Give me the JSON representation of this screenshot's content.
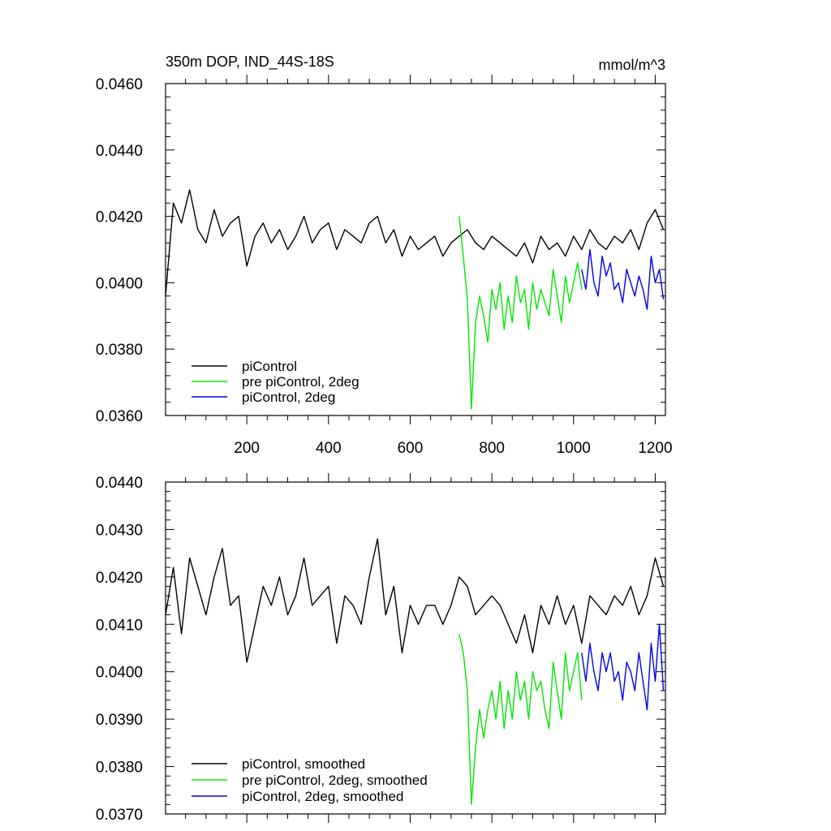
{
  "chart_data": [
    {
      "type": "line",
      "title": "350m DOP, IND_44S-18S",
      "units": "mmol/m^3",
      "xlim": [
        1,
        1225
      ],
      "ylim": [
        0.036,
        0.046
      ],
      "yticks": [
        "0.0360",
        "0.0380",
        "0.0400",
        "0.0420",
        "0.0440",
        "0.0460"
      ],
      "xticks": [
        "200",
        "400",
        "600",
        "800",
        "1000",
        "1200"
      ],
      "legend_position": "bottom-left",
      "series": [
        {
          "name": "piControl",
          "color": "#000000",
          "x": [
            1,
            20,
            40,
            60,
            80,
            100,
            120,
            140,
            160,
            180,
            200,
            220,
            240,
            260,
            280,
            300,
            320,
            340,
            360,
            380,
            400,
            420,
            440,
            460,
            480,
            500,
            520,
            540,
            560,
            580,
            600,
            620,
            640,
            660,
            680,
            700,
            720,
            740,
            760,
            780,
            800,
            820,
            840,
            860,
            880,
            900,
            920,
            940,
            960,
            980,
            1000,
            1020,
            1040,
            1060,
            1080,
            1100,
            1120,
            1140,
            1160,
            1180,
            1200,
            1220
          ],
          "y": [
            0.0396,
            0.0424,
            0.0418,
            0.0428,
            0.0416,
            0.0412,
            0.0422,
            0.0414,
            0.0418,
            0.042,
            0.0405,
            0.0414,
            0.0418,
            0.0412,
            0.0416,
            0.041,
            0.0414,
            0.042,
            0.0412,
            0.0416,
            0.0418,
            0.041,
            0.0416,
            0.0414,
            0.0412,
            0.0418,
            0.042,
            0.0412,
            0.0416,
            0.0408,
            0.0414,
            0.041,
            0.0412,
            0.0414,
            0.0408,
            0.0412,
            0.0414,
            0.0416,
            0.0412,
            0.041,
            0.0414,
            0.0412,
            0.041,
            0.0408,
            0.0412,
            0.0406,
            0.0414,
            0.041,
            0.0412,
            0.0408,
            0.0414,
            0.041,
            0.0416,
            0.0412,
            0.041,
            0.0414,
            0.0412,
            0.0416,
            0.041,
            0.0418,
            0.0422,
            0.0416
          ]
        },
        {
          "name": "pre piControl, 2deg",
          "color": "#00e600",
          "x": [
            720,
            730,
            740,
            750,
            760,
            770,
            780,
            790,
            800,
            810,
            820,
            830,
            840,
            850,
            860,
            870,
            880,
            890,
            900,
            910,
            920,
            930,
            940,
            950,
            960,
            970,
            980,
            990,
            1000,
            1010,
            1020
          ],
          "y": [
            0.042,
            0.0408,
            0.0395,
            0.0362,
            0.0388,
            0.0396,
            0.039,
            0.0382,
            0.0398,
            0.0392,
            0.04,
            0.0386,
            0.0396,
            0.0388,
            0.0402,
            0.0394,
            0.0398,
            0.0386,
            0.04,
            0.0392,
            0.0398,
            0.0394,
            0.039,
            0.0404,
            0.0396,
            0.0388,
            0.0402,
            0.0394,
            0.04,
            0.0406,
            0.0398
          ]
        },
        {
          "name": "piControl, 2deg",
          "color": "#0000e6",
          "x": [
            1020,
            1030,
            1040,
            1050,
            1060,
            1070,
            1080,
            1090,
            1100,
            1110,
            1120,
            1130,
            1140,
            1150,
            1160,
            1170,
            1180,
            1190,
            1200,
            1210,
            1220
          ],
          "y": [
            0.0404,
            0.0398,
            0.041,
            0.04,
            0.0396,
            0.0408,
            0.0402,
            0.0406,
            0.0398,
            0.04,
            0.0394,
            0.0404,
            0.04,
            0.0396,
            0.0402,
            0.0398,
            0.0392,
            0.0408,
            0.04,
            0.0404,
            0.0395
          ]
        }
      ]
    },
    {
      "type": "line",
      "xlim": [
        1,
        1225
      ],
      "ylim": [
        0.037,
        0.044
      ],
      "yticks": [
        "0.0370",
        "0.0380",
        "0.0390",
        "0.0400",
        "0.0410",
        "0.0420",
        "0.0430",
        "0.0440"
      ],
      "legend_position": "bottom-left",
      "series": [
        {
          "name": "piControl, smoothed",
          "color": "#000000",
          "x": [
            1,
            20,
            40,
            60,
            80,
            100,
            120,
            140,
            160,
            180,
            200,
            220,
            240,
            260,
            280,
            300,
            320,
            340,
            360,
            380,
            400,
            420,
            440,
            460,
            480,
            500,
            520,
            540,
            560,
            580,
            600,
            620,
            640,
            660,
            680,
            700,
            720,
            740,
            760,
            780,
            800,
            820,
            840,
            860,
            880,
            900,
            920,
            940,
            960,
            980,
            1000,
            1020,
            1040,
            1060,
            1080,
            1100,
            1120,
            1140,
            1160,
            1180,
            1200,
            1220
          ],
          "y": [
            0.0412,
            0.0422,
            0.0408,
            0.0424,
            0.0418,
            0.0412,
            0.042,
            0.0426,
            0.0414,
            0.0416,
            0.0402,
            0.041,
            0.0418,
            0.0414,
            0.042,
            0.0412,
            0.0416,
            0.0424,
            0.0414,
            0.0416,
            0.0418,
            0.0406,
            0.0416,
            0.0414,
            0.041,
            0.042,
            0.0428,
            0.0412,
            0.0418,
            0.0404,
            0.0414,
            0.041,
            0.0414,
            0.0414,
            0.041,
            0.0414,
            0.042,
            0.0418,
            0.0412,
            0.0414,
            0.0416,
            0.0414,
            0.041,
            0.0406,
            0.0412,
            0.0404,
            0.0414,
            0.041,
            0.0416,
            0.041,
            0.0414,
            0.0406,
            0.0416,
            0.0414,
            0.0412,
            0.0416,
            0.0414,
            0.0418,
            0.0412,
            0.0416,
            0.0424,
            0.0418
          ]
        },
        {
          "name": "pre piControl, 2deg, smoothed",
          "color": "#00e600",
          "x": [
            720,
            730,
            740,
            750,
            760,
            770,
            780,
            790,
            800,
            810,
            820,
            830,
            840,
            850,
            860,
            870,
            880,
            890,
            900,
            910,
            920,
            930,
            940,
            950,
            960,
            970,
            980,
            990,
            1000,
            1010,
            1020
          ],
          "y": [
            0.0408,
            0.0404,
            0.0396,
            0.0372,
            0.0384,
            0.0392,
            0.0386,
            0.0392,
            0.0396,
            0.039,
            0.0398,
            0.0388,
            0.0396,
            0.039,
            0.04,
            0.0394,
            0.0398,
            0.039,
            0.04,
            0.0396,
            0.0398,
            0.0392,
            0.0388,
            0.0402,
            0.0396,
            0.039,
            0.0404,
            0.0396,
            0.04,
            0.0404,
            0.0394
          ]
        },
        {
          "name": "piControl, 2deg, smoothed",
          "color": "#0000e6",
          "x": [
            1020,
            1030,
            1040,
            1050,
            1060,
            1070,
            1080,
            1090,
            1100,
            1110,
            1120,
            1130,
            1140,
            1150,
            1160,
            1170,
            1180,
            1190,
            1200,
            1210,
            1220
          ],
          "y": [
            0.0404,
            0.0398,
            0.0406,
            0.04,
            0.0396,
            0.0404,
            0.04,
            0.0404,
            0.0398,
            0.04,
            0.0394,
            0.0402,
            0.04,
            0.0396,
            0.0404,
            0.0398,
            0.0392,
            0.0406,
            0.0398,
            0.041,
            0.0396
          ]
        }
      ]
    }
  ]
}
